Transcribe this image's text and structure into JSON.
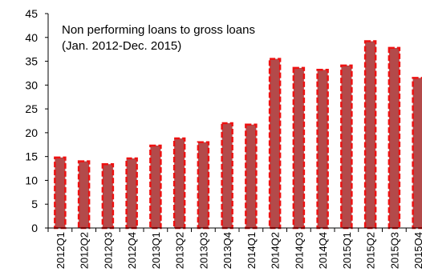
{
  "chart_data": {
    "type": "bar",
    "title": "Non performing loans to gross loans",
    "subtitle": "(Jan. 2012-Dec. 2015)",
    "xlabel": "",
    "ylabel": "",
    "ylim": [
      0,
      45
    ],
    "yticks": [
      0,
      5,
      10,
      15,
      20,
      25,
      30,
      35,
      40,
      45
    ],
    "grid": false,
    "categories": [
      "2012Q1",
      "2012Q2",
      "2012Q3",
      "2012Q4",
      "2013Q1",
      "2013Q2",
      "2013Q3",
      "2013Q4",
      "2014Q1",
      "2014Q2",
      "2014Q3",
      "2014Q4",
      "2015Q1",
      "2015Q2",
      "2015Q3",
      "2015Q4"
    ],
    "values": [
      14.8,
      14.0,
      13.4,
      14.6,
      17.3,
      18.8,
      18.0,
      22.0,
      21.7,
      35.5,
      33.6,
      33.2,
      34.1,
      39.2,
      37.8,
      31.5
    ],
    "colors": {
      "bar_fill": "#b34a4a",
      "bar_stroke": "#ee1111"
    }
  }
}
